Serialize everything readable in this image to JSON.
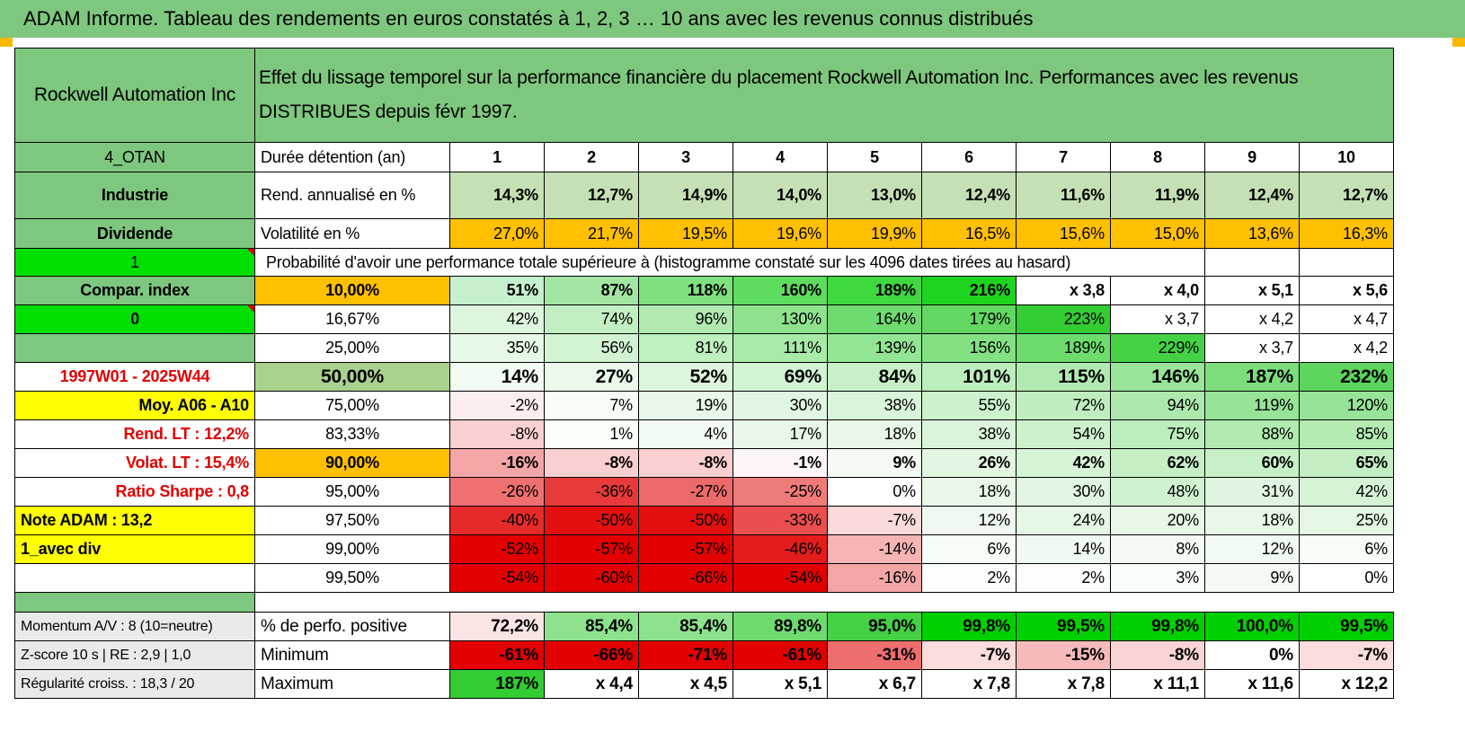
{
  "title": "ADAM Informe. Tableau des rendements en euros constatés à 1, 2, 3 … 10 ans avec les revenus connus distribués",
  "header": {
    "company": "Rockwell Automation Inc",
    "description": "Effet du lissage temporel sur la performance financière du placement Rockwell Automation Inc. Performances avec les revenus DISTRIBUES depuis févr 1997."
  },
  "info_rows": [
    {
      "left": "4_OTAN",
      "label": "Durée détention (an)",
      "values": [
        "1",
        "2",
        "3",
        "4",
        "5",
        "6",
        "7",
        "8",
        "9",
        "10"
      ]
    },
    {
      "left": "Industrie",
      "label": "Rend. annualisé en %",
      "values": [
        "14,3%",
        "12,7%",
        "14,9%",
        "14,0%",
        "13,0%",
        "12,4%",
        "11,6%",
        "11,9%",
        "12,4%",
        "12,7%"
      ]
    },
    {
      "left": "Dividende",
      "label": "Volatilité en %",
      "values": [
        "27,0%",
        "21,7%",
        "19,5%",
        "19,6%",
        "19,9%",
        "16,5%",
        "15,6%",
        "15,0%",
        "13,6%",
        "16,3%"
      ]
    }
  ],
  "prob_row": {
    "left": "1",
    "text": "Probabilité d'avoir une performance totale supérieure à (histogramme constaté sur les 4096 dates tirées au hasard)"
  },
  "quantile_rows": [
    {
      "left": "Compar. index",
      "pct": "10,00%",
      "values": [
        "51%",
        "87%",
        "118%",
        "160%",
        "189%",
        "216%",
        "x 3,8",
        "x 4,0",
        "x 5,1",
        "x 5,6"
      ],
      "colors": [
        "#c6efce",
        "#a3e6a3",
        "#7fe07f",
        "#5fdc5f",
        "#3fd83f",
        "#1fd41f",
        "#ffffff",
        "#ffffff",
        "#ffffff",
        "#ffffff"
      ]
    },
    {
      "left": "0",
      "pct": "16,67%",
      "values": [
        "42%",
        "74%",
        "96%",
        "130%",
        "164%",
        "179%",
        "223%",
        "x 3,7",
        "x 4,2",
        "x 4,7"
      ],
      "colors": [
        "#dcf5dc",
        "#c2efc2",
        "#b0eab0",
        "#8ee28e",
        "#6fdb6f",
        "#62d862",
        "#33cc33",
        "#ffffff",
        "#ffffff",
        "#ffffff"
      ]
    },
    {
      "left": "",
      "pct": "25,00%",
      "values": [
        "35%",
        "56%",
        "81%",
        "111%",
        "139%",
        "156%",
        "189%",
        "229%",
        "x 3,7",
        "x 4,2"
      ],
      "colors": [
        "#e6f8e6",
        "#d2f3d2",
        "#bff0bf",
        "#a8eaa8",
        "#92e592",
        "#83e183",
        "#6ddc6d",
        "#44d144",
        "#ffffff",
        "#ffffff"
      ]
    },
    {
      "left": "1997W01 - 2025W44",
      "pct": "50,00%",
      "values": [
        "14%",
        "27%",
        "52%",
        "69%",
        "84%",
        "101%",
        "115%",
        "146%",
        "187%",
        "232%"
      ],
      "colors": [
        "#f2fbf2",
        "#ebf9eb",
        "#dcf5dc",
        "#d2f3d2",
        "#c8f0c8",
        "#bcedbc",
        "#b1eab1",
        "#99e499",
        "#7ddd7d",
        "#5cd55c"
      ]
    },
    {
      "left": "Moy. A06 - A10",
      "pct": "75,00%",
      "values": [
        "-2%",
        "7%",
        "19%",
        "30%",
        "38%",
        "55%",
        "72%",
        "94%",
        "119%",
        "120%"
      ],
      "colors": [
        "#fdeeee",
        "#f6fcf6",
        "#e8f8e8",
        "#e0f6e0",
        "#d9f4d9",
        "#ccf1cc",
        "#bfedbf",
        "#ade8ad",
        "#97e397",
        "#97e397"
      ]
    },
    {
      "left": "Rend. LT :    12,2%",
      "pct": "83,33%",
      "values": [
        "-8%",
        "1%",
        "4%",
        "17%",
        "18%",
        "38%",
        "54%",
        "75%",
        "88%",
        "85%"
      ],
      "colors": [
        "#f9cfcf",
        "#fafffa",
        "#f2fbf2",
        "#e8f8e8",
        "#e8f8e8",
        "#d9f4d9",
        "#cdf1cd",
        "#bcedbc",
        "#b0eab0",
        "#b3ebb3"
      ]
    },
    {
      "left": "Volat. LT :    15,4%",
      "pct": "90,00%",
      "values": [
        "-16%",
        "-8%",
        "-8%",
        "-1%",
        "9%",
        "26%",
        "42%",
        "62%",
        "60%",
        "65%"
      ],
      "colors": [
        "#f4a6a6",
        "#f9cfcf",
        "#f9cfcf",
        "#fef6f6",
        "#f3fbf3",
        "#e2f6e2",
        "#d6f3d6",
        "#c6efc6",
        "#c8f0c8",
        "#c3eec3"
      ]
    },
    {
      "left": "Ratio Sharpe :     0,8",
      "pct": "95,00%",
      "values": [
        "-26%",
        "-36%",
        "-27%",
        "-25%",
        "0%",
        "18%",
        "30%",
        "48%",
        "31%",
        "42%"
      ],
      "colors": [
        "#ee7070",
        "#e83a3a",
        "#ec6a6a",
        "#ef7a7a",
        "#ffffff",
        "#e8f8e8",
        "#e0f6e0",
        "#d1f2d1",
        "#dff5df",
        "#d6f3d6"
      ]
    },
    {
      "left": "Note ADAM : 13,2",
      "pct": "97,50%",
      "values": [
        "-40%",
        "-50%",
        "-50%",
        "-33%",
        "-7%",
        "12%",
        "24%",
        "20%",
        "18%",
        "25%"
      ],
      "colors": [
        "#e62a2a",
        "#e40f0f",
        "#e40f0f",
        "#ea4e4e",
        "#fadada",
        "#eff9ef",
        "#e4f7e4",
        "#e7f8e7",
        "#e8f8e8",
        "#e3f7e3"
      ]
    },
    {
      "left": "1_avec div",
      "pct": "99,00%",
      "values": [
        "-52%",
        "-57%",
        "-57%",
        "-46%",
        "-14%",
        "6%",
        "14%",
        "8%",
        "12%",
        "6%"
      ],
      "colors": [
        "#e30000",
        "#e30000",
        "#e30000",
        "#e51c1c",
        "#f6b4b4",
        "#f6fcf6",
        "#f0faf0",
        "#f4fbf4",
        "#f1fbf1",
        "#f6fcf6"
      ]
    },
    {
      "left": "",
      "pct": "99,50%",
      "values": [
        "-54%",
        "-60%",
        "-66%",
        "-54%",
        "-16%",
        "2%",
        "2%",
        "3%",
        "9%",
        "0%"
      ],
      "colors": [
        "#e30000",
        "#e30000",
        "#e30000",
        "#e30000",
        "#f4a6a6",
        "#fbfefb",
        "#fbfefb",
        "#fafefa",
        "#f3fbf3",
        "#ffffff"
      ]
    }
  ],
  "bottom_rows": [
    {
      "left": "Momentum A/V : 8 (10=neutre)",
      "label": "% de perfo. positive",
      "values": [
        "72,2%",
        "85,4%",
        "85,4%",
        "89,8%",
        "95,0%",
        "99,8%",
        "99,5%",
        "99,8%",
        "100,0%",
        "99,5%"
      ],
      "colors": [
        "#fbe4e4",
        "#8ee28e",
        "#8ee28e",
        "#6fdb6f",
        "#44d144",
        "#00d000",
        "#00d000",
        "#00d000",
        "#00d000",
        "#00d000"
      ]
    },
    {
      "left": "Z-score 10 s | RE : 2,9 | 1,0",
      "label": "Minimum",
      "values": [
        "-61%",
        "-66%",
        "-71%",
        "-61%",
        "-31%",
        "-7%",
        "-15%",
        "-8%",
        "0%",
        "-7%"
      ],
      "colors": [
        "#e30000",
        "#e30000",
        "#e30000",
        "#e30000",
        "#ee6e6e",
        "#fbdcdc",
        "#f7baba",
        "#fad4d4",
        "#ffffff",
        "#fbdcdc"
      ]
    },
    {
      "left": "Régularité croiss. : 18,3 / 20",
      "label": "Maximum",
      "values": [
        "187%",
        "x 4,4",
        "x 4,5",
        "x 5,1",
        "x 6,7",
        "x 7,8",
        "x 7,8",
        "x 11,1",
        "x 11,6",
        "x 12,2"
      ],
      "colors": [
        "#33cc33",
        "#ffffff",
        "#ffffff",
        "#ffffff",
        "#ffffff",
        "#ffffff",
        "#ffffff",
        "#ffffff",
        "#ffffff",
        "#ffffff"
      ]
    }
  ]
}
